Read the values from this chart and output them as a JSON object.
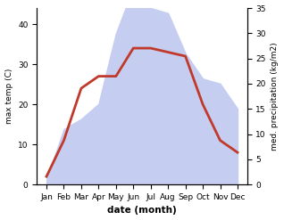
{
  "months": [
    "Jan",
    "Feb",
    "Mar",
    "Apr",
    "May",
    "Jun",
    "Jul",
    "Aug",
    "Sep",
    "Oct",
    "Nov",
    "Dec"
  ],
  "temp": [
    2,
    11,
    24,
    27,
    27,
    34,
    34,
    33,
    32,
    20,
    11,
    8
  ],
  "precip": [
    1,
    11,
    13,
    16,
    30,
    39,
    35,
    34,
    26,
    21,
    20,
    15
  ],
  "temp_color": "#c0392b",
  "precip_fill_color": "#c5cdf0",
  "ylabel_left": "max temp (C)",
  "ylabel_right": "med. precipitation (kg/m2)",
  "xlabel": "date (month)",
  "ylim_left": [
    0,
    44
  ],
  "ylim_right": [
    0,
    35
  ],
  "yticks_left": [
    0,
    10,
    20,
    30,
    40
  ],
  "yticks_right": [
    0,
    5,
    10,
    15,
    20,
    25,
    30,
    35
  ],
  "fig_width": 3.18,
  "fig_height": 2.47,
  "dpi": 100
}
